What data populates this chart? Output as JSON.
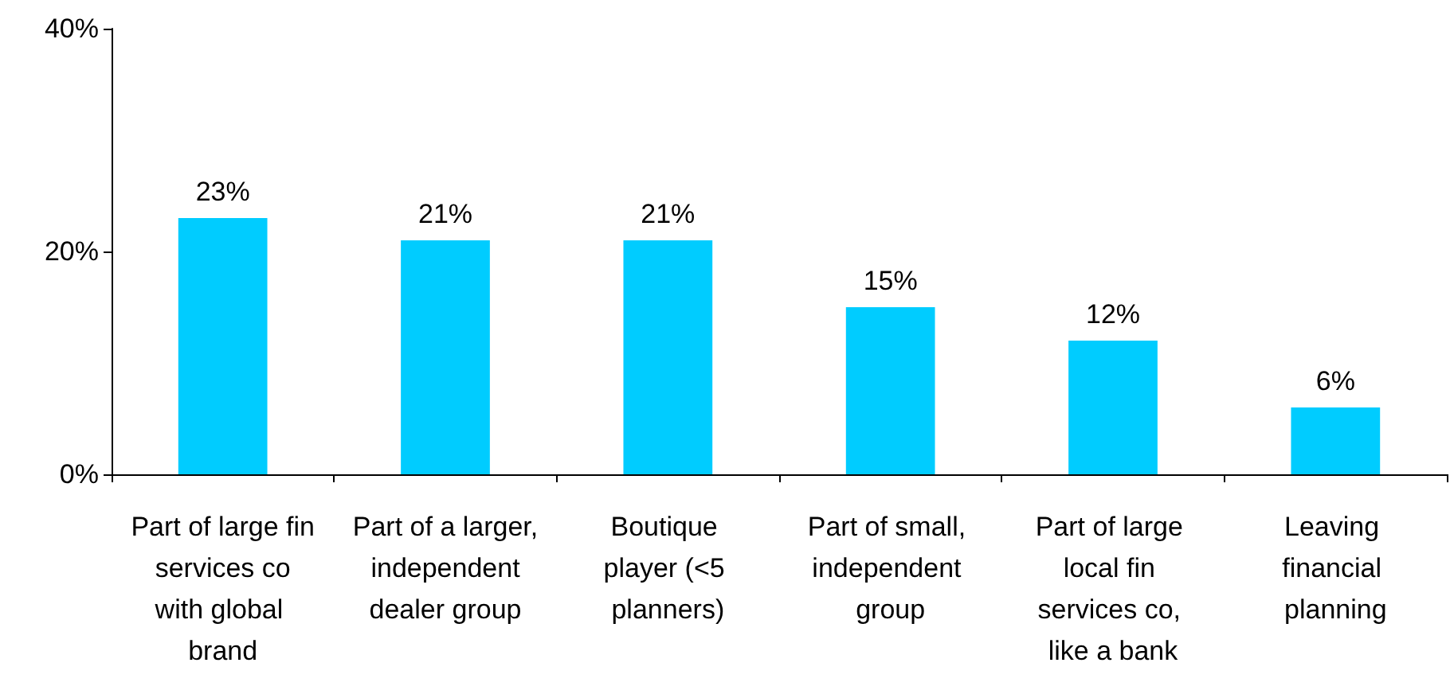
{
  "chart_data": {
    "type": "bar",
    "categories": [
      "Part of large fin services co with global brand",
      "Part of a larger, independent dealer group",
      "Boutique player (<5 planners)",
      "Part of small, independent group",
      "Part of large local fin services co, like a bank",
      "Leaving financial planning"
    ],
    "values": [
      23,
      21,
      21,
      15,
      12,
      6
    ],
    "value_labels": [
      "23%",
      "21%",
      "21%",
      "15%",
      "12%",
      "6%"
    ],
    "color": "#00ccff",
    "ylim": [
      0,
      40
    ],
    "yticks": [
      {
        "value": 0,
        "label": "0%"
      },
      {
        "value": 20,
        "label": "20%"
      },
      {
        "value": 40,
        "label": "40%"
      }
    ],
    "grid": false
  }
}
